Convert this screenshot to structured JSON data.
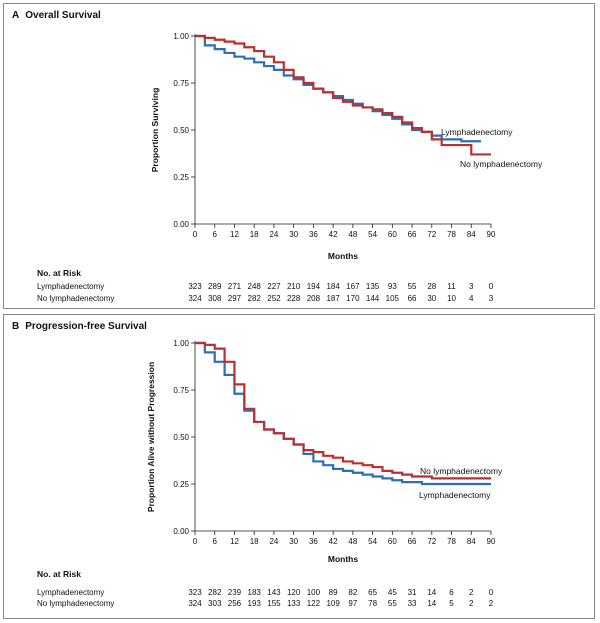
{
  "colors": {
    "lymph": "#2f6db5",
    "nolymph": "#b8302f",
    "axis": "#222222"
  },
  "chart_data": [
    {
      "type": "line",
      "panel_letter": "A",
      "title": "Overall Survival",
      "xlabel": "Months",
      "ylabel": "Proportion Surviving",
      "xlim": [
        0,
        90
      ],
      "ylim": [
        0,
        1
      ],
      "x_ticks": [
        "0",
        "6",
        "12",
        "18",
        "24",
        "30",
        "36",
        "42",
        "48",
        "54",
        "60",
        "66",
        "72",
        "78",
        "84",
        "90"
      ],
      "y_ticks": [
        "0.00",
        "0.25",
        "0.50",
        "0.75",
        "1.00"
      ],
      "series": [
        {
          "name": "Lymphadenectomy",
          "x": [
            0,
            3,
            6,
            9,
            12,
            15,
            18,
            21,
            24,
            27,
            30,
            33,
            36,
            39,
            42,
            45,
            48,
            51,
            54,
            57,
            60,
            63,
            66,
            69,
            72,
            75,
            78,
            81,
            84,
            87
          ],
          "y": [
            1.0,
            0.95,
            0.93,
            0.91,
            0.89,
            0.88,
            0.86,
            0.84,
            0.82,
            0.79,
            0.77,
            0.74,
            0.72,
            0.7,
            0.68,
            0.66,
            0.64,
            0.62,
            0.6,
            0.58,
            0.56,
            0.53,
            0.5,
            0.49,
            0.47,
            0.45,
            0.45,
            0.44,
            0.44,
            0.44
          ]
        },
        {
          "name": "No lymphadenectomy",
          "x": [
            0,
            3,
            6,
            9,
            12,
            15,
            18,
            21,
            24,
            27,
            30,
            33,
            36,
            39,
            42,
            45,
            48,
            51,
            54,
            57,
            60,
            63,
            66,
            69,
            72,
            75,
            78,
            81,
            84,
            87,
            90
          ],
          "y": [
            1.0,
            0.99,
            0.98,
            0.97,
            0.96,
            0.94,
            0.92,
            0.89,
            0.86,
            0.82,
            0.78,
            0.75,
            0.72,
            0.7,
            0.67,
            0.65,
            0.63,
            0.62,
            0.61,
            0.59,
            0.57,
            0.54,
            0.51,
            0.49,
            0.45,
            0.42,
            0.42,
            0.42,
            0.37,
            0.37,
            0.37
          ]
        }
      ],
      "number_at_risk": {
        "title": "No. at Risk",
        "rows": [
          {
            "label": "Lymphadenectomy",
            "values": [
              "323",
              "289",
              "271",
              "248",
              "227",
              "210",
              "194",
              "184",
              "167",
              "135",
              "93",
              "55",
              "28",
              "11",
              "3",
              "0"
            ]
          },
          {
            "label": "No lymphadenectomy",
            "values": [
              "324",
              "308",
              "297",
              "282",
              "252",
              "228",
              "208",
              "187",
              "170",
              "144",
              "105",
              "66",
              "30",
              "10",
              "4",
              "3"
            ]
          }
        ]
      }
    },
    {
      "type": "line",
      "panel_letter": "B",
      "title": "Progression-free Survival",
      "xlabel": "Months",
      "ylabel": "Proportion Alive without Progression",
      "xlim": [
        0,
        90
      ],
      "ylim": [
        0,
        1
      ],
      "x_ticks": [
        "0",
        "6",
        "12",
        "18",
        "24",
        "30",
        "36",
        "42",
        "48",
        "54",
        "60",
        "66",
        "72",
        "78",
        "84",
        "90"
      ],
      "y_ticks": [
        "0.00",
        "0.25",
        "0.50",
        "0.75",
        "1.00"
      ],
      "series": [
        {
          "name": "Lymphadenectomy",
          "x": [
            0,
            3,
            6,
            9,
            12,
            15,
            18,
            21,
            24,
            27,
            30,
            33,
            36,
            39,
            42,
            45,
            48,
            51,
            54,
            57,
            60,
            63,
            66,
            69,
            72,
            78,
            84,
            90
          ],
          "y": [
            1.0,
            0.95,
            0.9,
            0.83,
            0.73,
            0.64,
            0.58,
            0.54,
            0.52,
            0.49,
            0.46,
            0.41,
            0.37,
            0.35,
            0.33,
            0.32,
            0.31,
            0.3,
            0.29,
            0.28,
            0.27,
            0.26,
            0.26,
            0.25,
            0.25,
            0.25,
            0.25,
            0.25
          ]
        },
        {
          "name": "No lymphadenectomy",
          "x": [
            0,
            3,
            6,
            9,
            12,
            15,
            18,
            21,
            24,
            27,
            30,
            33,
            36,
            39,
            42,
            45,
            48,
            51,
            54,
            57,
            60,
            63,
            66,
            69,
            72,
            78,
            84,
            90
          ],
          "y": [
            1.0,
            0.99,
            0.97,
            0.9,
            0.78,
            0.65,
            0.58,
            0.54,
            0.52,
            0.49,
            0.46,
            0.43,
            0.42,
            0.4,
            0.39,
            0.37,
            0.36,
            0.35,
            0.34,
            0.32,
            0.31,
            0.3,
            0.29,
            0.29,
            0.28,
            0.28,
            0.28,
            0.28
          ]
        }
      ],
      "number_at_risk": {
        "title": "No. at Risk",
        "rows": [
          {
            "label": "Lymphadenectomy",
            "values": [
              "323",
              "282",
              "239",
              "183",
              "143",
              "120",
              "100",
              "89",
              "82",
              "65",
              "45",
              "31",
              "14",
              "6",
              "2",
              "0"
            ]
          },
          {
            "label": "No lymphadenectomy",
            "values": [
              "324",
              "303",
              "256",
              "193",
              "155",
              "133",
              "122",
              "109",
              "97",
              "78",
              "55",
              "33",
              "14",
              "5",
              "2",
              "2"
            ]
          }
        ]
      }
    }
  ]
}
